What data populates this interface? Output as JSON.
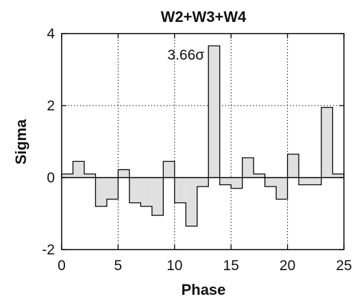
{
  "chart_data": {
    "type": "bar",
    "title": "W2+W3+W4",
    "xlabel": "Phase",
    "ylabel": "Sigma",
    "xlim": [
      0,
      25
    ],
    "ylim": [
      -2,
      4
    ],
    "xticks": [
      "0",
      "5",
      "10",
      "15",
      "20",
      "25"
    ],
    "yticks": [
      "-2",
      "0",
      "2",
      "4"
    ],
    "grid": true,
    "bin_width": 1,
    "x": [
      0,
      1,
      2,
      3,
      4,
      5,
      6,
      7,
      8,
      9,
      10,
      11,
      12,
      13,
      14,
      15,
      16,
      17,
      18,
      19,
      20,
      21,
      22,
      23,
      24
    ],
    "values": [
      0.1,
      0.45,
      0.1,
      -0.8,
      -0.6,
      0.22,
      -0.7,
      -0.8,
      -1.05,
      0.45,
      -0.7,
      -1.35,
      -0.25,
      3.66,
      -0.2,
      -0.3,
      0.55,
      0.1,
      -0.25,
      -0.6,
      0.65,
      -0.2,
      -0.2,
      1.95,
      0.1
    ],
    "bar_color": "#e0e0e0",
    "annotation": {
      "text": "3.66σ",
      "x": 13,
      "y": 3.66
    }
  }
}
